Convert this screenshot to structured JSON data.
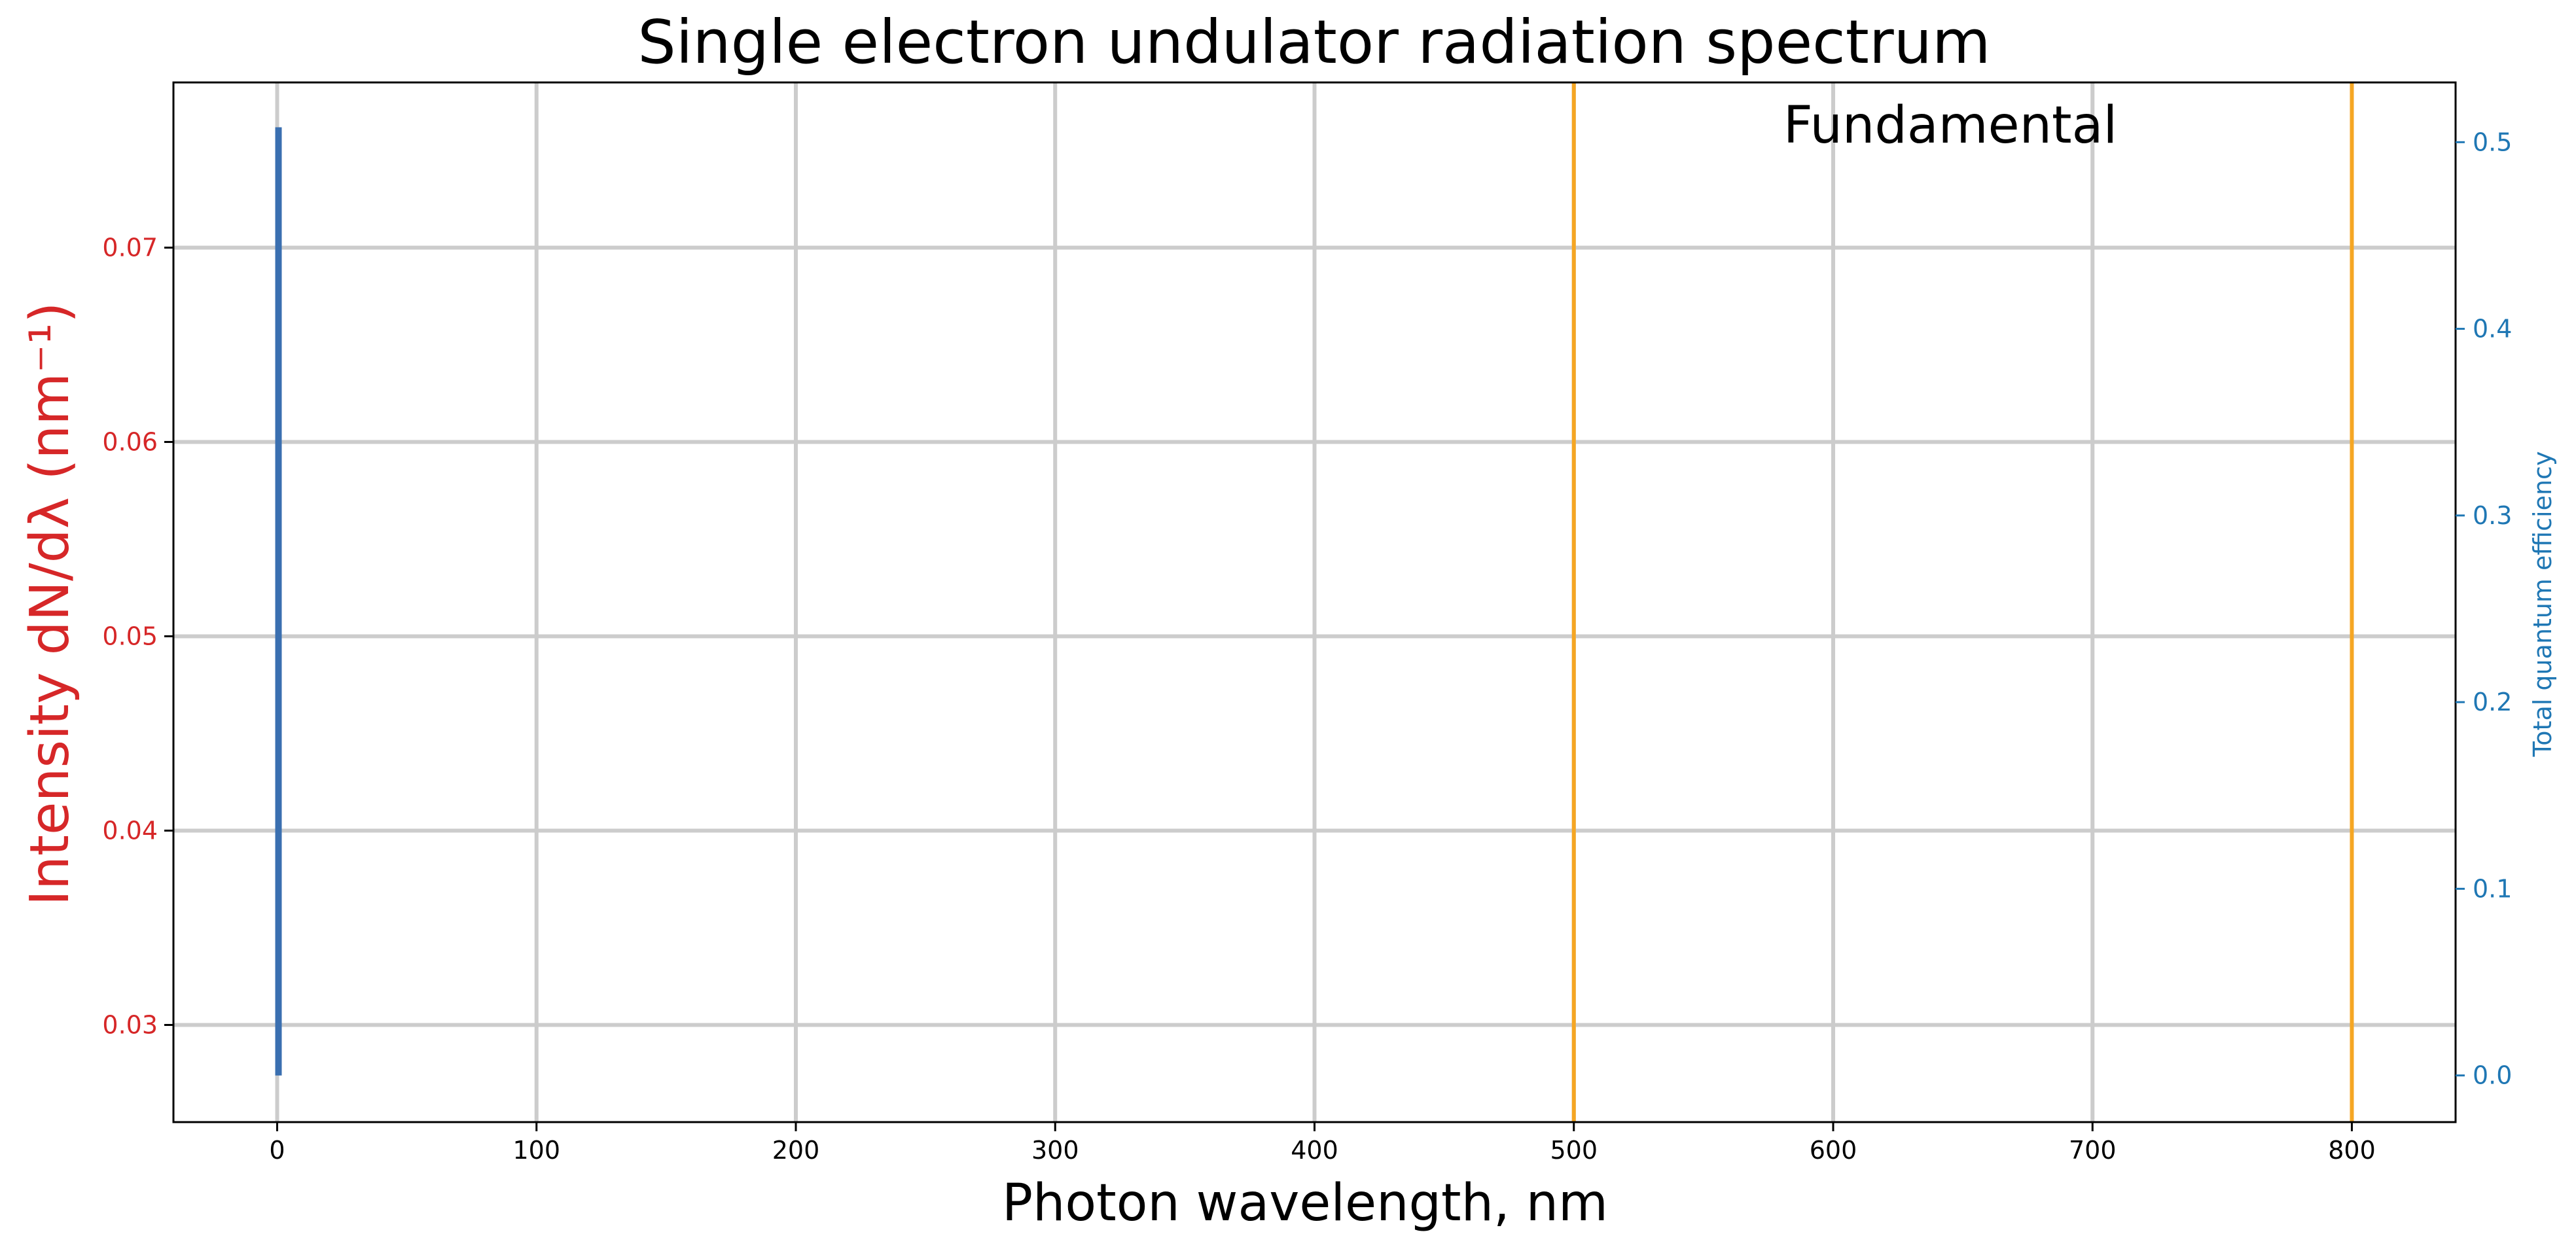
{
  "chart_data": {
    "type": "line",
    "title": "Single electron undulator radiation spectrum",
    "xlabel": "Photon wavelength, nm",
    "ylabel": "Intensity dN/dλ (nm⁻¹)",
    "ylabel_right": "Total quantum efficiency",
    "xlim": [
      -40,
      840
    ],
    "ylim": [
      0.025,
      0.0785
    ],
    "ylim_right": [
      -0.025,
      0.532
    ],
    "x_ticks": [
      0,
      100,
      200,
      300,
      400,
      500,
      600,
      700,
      800
    ],
    "y_ticks": [
      0.03,
      0.04,
      0.05,
      0.06,
      0.07
    ],
    "y_ticks_right": [
      0.0,
      0.1,
      0.2,
      0.3,
      0.4,
      0.5
    ],
    "x_tick_labels": [
      "0",
      "100",
      "200",
      "300",
      "400",
      "500",
      "600",
      "700",
      "800"
    ],
    "y_tick_labels": [
      "0.03",
      "0.04",
      "0.05",
      "0.06",
      "0.07"
    ],
    "y_tick_labels_right": [
      "0.0",
      "0.1",
      "0.2",
      "0.3",
      "0.4",
      "0.5"
    ],
    "grid": true,
    "annotation": "Fundamental",
    "vertical_lines": [
      500,
      800
    ],
    "series": [
      {
        "axis": "left",
        "color": "#d62728",
        "x": [
          0.2,
          0.3,
          0.4,
          0.5
        ],
        "y": [
          0.0367,
          0.0495,
          0.0427,
          0.072
        ]
      },
      {
        "axis": "right",
        "color": "#3a6fb0",
        "x": [
          0.5,
          0.5
        ],
        "y": [
          0.0,
          0.508
        ]
      }
    ],
    "colors": {
      "left_axis": "#d62728",
      "right_axis": "#1f77b4",
      "vline": "#f5a623",
      "grid": "#cccccc"
    }
  }
}
